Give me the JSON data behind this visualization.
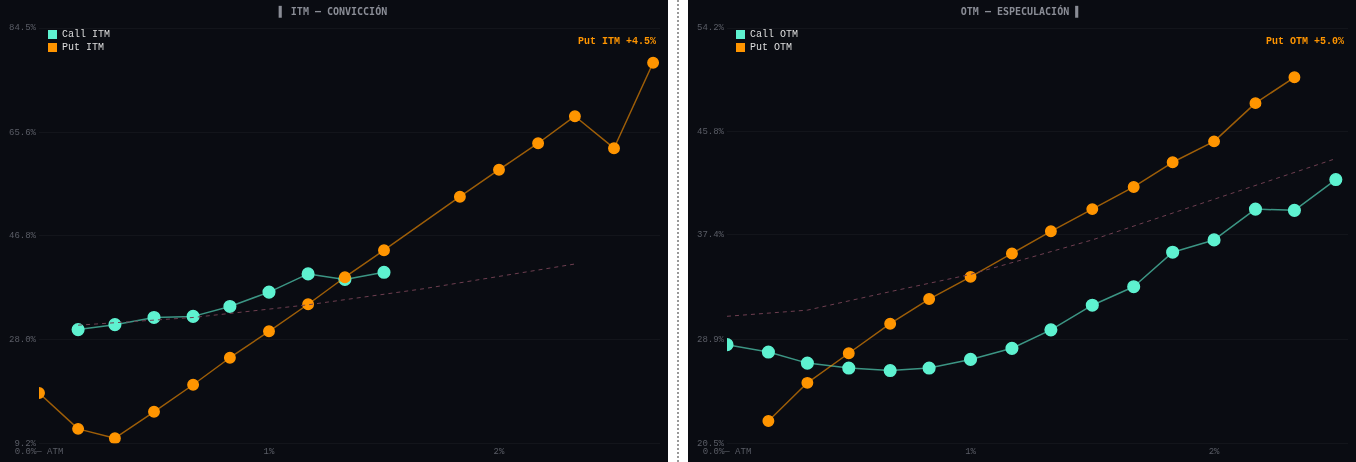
{
  "chart_data": [
    {
      "type": "line",
      "title": "▌ ITM — CONVICCIÓN",
      "annotations": [
        "Put ITM +4.5%"
      ],
      "xlim": [
        0,
        2.7
      ],
      "ylim": [
        9.2,
        84.5
      ],
      "xticks": [
        {
          "value": 0,
          "label": "0.0%— ATM"
        },
        {
          "value": 1,
          "label": "1%"
        },
        {
          "value": 2,
          "label": "2%"
        }
      ],
      "yticks": [
        {
          "value": 9.2,
          "label": "9.2%"
        },
        {
          "value": 28.0,
          "label": "28.0%"
        },
        {
          "value": 46.8,
          "label": "46.8%"
        },
        {
          "value": 65.6,
          "label": "65.6%"
        },
        {
          "value": 84.5,
          "label": "84.5%"
        }
      ],
      "grid": "y",
      "legend": "top left",
      "marker": "circle",
      "series": [
        {
          "name": "Call ITM",
          "color": "#5ef2d0",
          "x": [
            0.17,
            0.33,
            0.5,
            0.67,
            0.83,
            1.0,
            1.17,
            1.33,
            1.5
          ],
          "values": [
            29.8,
            30.7,
            32.0,
            32.2,
            34.0,
            36.6,
            39.9,
            38.9,
            40.2
          ]
        },
        {
          "name": "Put ITM",
          "color": "#ff9500",
          "x": [
            0,
            0.17,
            0.33,
            0.5,
            0.67,
            0.83,
            1.0,
            1.17,
            1.33,
            1.5,
            1.83,
            2.0,
            2.17,
            2.33,
            2.5,
            2.67
          ],
          "values": [
            18.3,
            11.8,
            10.1,
            14.9,
            19.8,
            24.7,
            29.5,
            34.4,
            39.3,
            44.2,
            53.9,
            58.8,
            63.6,
            68.5,
            62.7,
            78.2
          ]
        },
        {
          "color": "#6e3f50",
          "line_style": "dashed",
          "marker": "none",
          "x": [
            0.17,
            0.67,
            1.17,
            1.67,
            2.33
          ],
          "values": [
            30.6,
            32.0,
            34.3,
            37.2,
            41.7
          ]
        }
      ]
    },
    {
      "type": "line",
      "title": "OTM — ESPECULACIÓN ▌",
      "annotations": [
        "Put OTM +5.0%"
      ],
      "xlim": [
        0,
        2.55
      ],
      "ylim": [
        20.5,
        54.2
      ],
      "xticks": [
        {
          "value": 0,
          "label": "0.0%— ATM"
        },
        {
          "value": 1,
          "label": "1%"
        },
        {
          "value": 2,
          "label": "2%"
        }
      ],
      "yticks": [
        {
          "value": 20.5,
          "label": "20.5%"
        },
        {
          "value": 28.9,
          "label": "28.9%"
        },
        {
          "value": 37.4,
          "label": "37.4%"
        },
        {
          "value": 45.8,
          "label": "45.8%"
        },
        {
          "value": 54.2,
          "label": "54.2%"
        }
      ],
      "grid": "y",
      "legend": "top left",
      "marker": "circle",
      "series": [
        {
          "name": "Call OTM",
          "color": "#5ef2d0",
          "x": [
            0,
            0.17,
            0.33,
            0.5,
            0.67,
            0.83,
            1.0,
            1.17,
            1.33,
            1.5,
            1.67,
            1.83,
            2.0,
            2.17,
            2.33,
            2.5
          ],
          "values": [
            28.5,
            27.9,
            27.0,
            26.6,
            26.4,
            26.6,
            27.3,
            28.2,
            29.7,
            31.7,
            33.2,
            36.0,
            37.0,
            39.5,
            39.4,
            41.9
          ]
        },
        {
          "name": "Put OTM",
          "color": "#ff9500",
          "x": [
            0.17,
            0.33,
            0.5,
            0.67,
            0.83,
            1.0,
            1.17,
            1.33,
            1.5,
            1.67,
            1.83,
            2.0,
            2.17,
            2.33
          ],
          "values": [
            22.3,
            25.4,
            27.8,
            30.2,
            32.2,
            34.0,
            35.9,
            37.7,
            39.5,
            41.3,
            43.3,
            45.0,
            48.1,
            50.2
          ]
        },
        {
          "color": "#6e3f50",
          "line_style": "dashed",
          "marker": "none",
          "x": [
            0,
            0.33,
            0.67,
            1.0,
            1.5,
            2.0,
            2.5
          ],
          "values": [
            30.8,
            31.3,
            32.8,
            34.2,
            37.0,
            40.3,
            43.6
          ]
        }
      ]
    }
  ]
}
